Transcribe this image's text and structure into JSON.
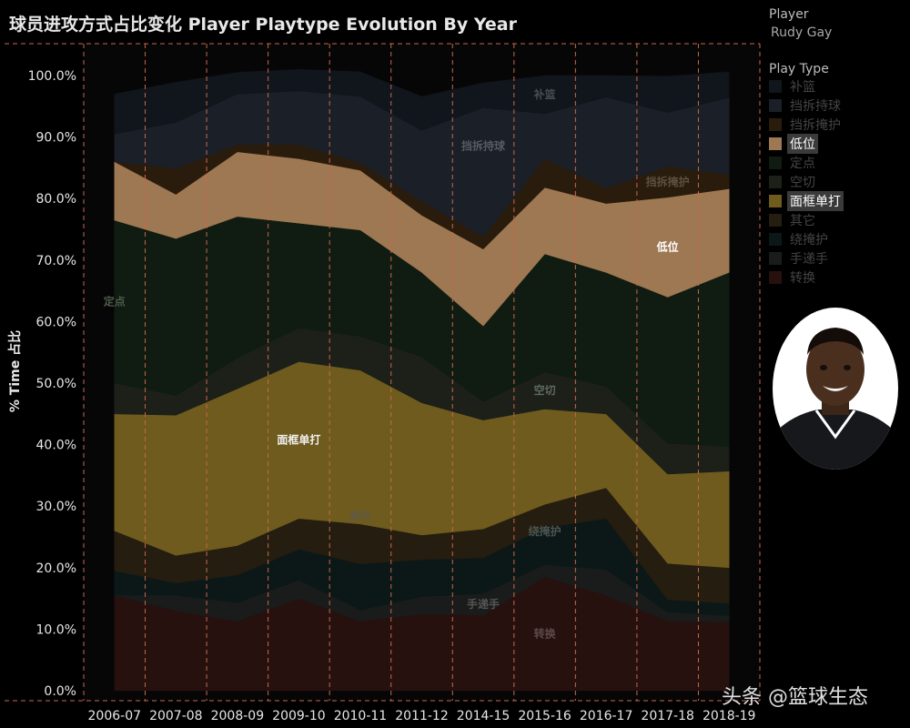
{
  "header": {
    "title": "球员进攻方式占比变化 Player Playtype Evolution By Year"
  },
  "panel": {
    "player_heading": "Player",
    "player_name": "Rudy Gay",
    "legend_heading": "Play Type",
    "legend": [
      {
        "label": "补篮",
        "state": "dim"
      },
      {
        "label": "挡拆持球",
        "state": "dim"
      },
      {
        "label": "挡拆掩护",
        "state": "dim"
      },
      {
        "label": "低位",
        "state": "active"
      },
      {
        "label": "定点",
        "state": "dim"
      },
      {
        "label": "空切",
        "state": "dim"
      },
      {
        "label": "面框单打",
        "state": "active"
      },
      {
        "label": "其它",
        "state": "dim"
      },
      {
        "label": "绕掩护",
        "state": "dim"
      },
      {
        "label": "手递手",
        "state": "dim"
      },
      {
        "label": "转换",
        "state": "dim"
      }
    ]
  },
  "watermark": "头条 @篮球生态",
  "chart_data": {
    "type": "area",
    "stacked": true,
    "ylabel": "% Time 占比",
    "xlabel": "",
    "y_unit": "%",
    "ylim": [
      0,
      100
    ],
    "y_ticks": [
      "0.0%",
      "10.0%",
      "20.0%",
      "30.0%",
      "40.0%",
      "50.0%",
      "60.0%",
      "70.0%",
      "80.0%",
      "90.0%",
      "100.0%"
    ],
    "grid": "vertical dashed per season",
    "categories": [
      "2006-07",
      "2007-08",
      "2008-09",
      "2009-10",
      "2010-11",
      "2011-12",
      "2014-15",
      "2015-16",
      "2016-17",
      "2017-18",
      "2018-19"
    ],
    "series": [
      {
        "name": "转换",
        "color": "#26110f",
        "label_color": "#5a4a48",
        "label_index": 7,
        "label_offset": 0.5,
        "values": [
          15.5,
          13.0,
          11.3,
          15.0,
          11.3,
          12.5,
          12.3,
          18.5,
          15.5,
          11.3,
          11.2
        ]
      },
      {
        "name": "手递手",
        "color": "#1a1c1b",
        "label_color": "#555555",
        "label_index": 6,
        "label_offset": 0.5,
        "values": [
          0,
          2.5,
          3.0,
          3.0,
          1.8,
          2.8,
          3.5,
          2.0,
          4.2,
          1.5,
          1.0
        ]
      },
      {
        "name": "绕掩护",
        "color": "#0c1818",
        "label_color": "#4b5550",
        "label_index": 7,
        "label_offset": 0.9,
        "values": [
          4.0,
          2.0,
          4.5,
          5.0,
          7.5,
          6.0,
          5.8,
          6.0,
          8.3,
          2.0,
          2.0
        ]
      },
      {
        "name": "其它",
        "color": "#241d10",
        "label_color": "#5d5a4a",
        "label_index": 4,
        "label_offset": 1.2,
        "values": [
          6.5,
          4.5,
          4.8,
          5.0,
          6.5,
          4.0,
          4.7,
          3.8,
          5.0,
          5.9,
          5.8
        ]
      },
      {
        "name": "面框单打",
        "color": "#6e5b1d",
        "label_color": "#f0f0f0",
        "label_index": 3,
        "label_offset": 0.5,
        "values": [
          19.0,
          22.8,
          25.5,
          25.5,
          25.0,
          21.5,
          17.7,
          15.5,
          12.0,
          14.5,
          15.7
        ]
      },
      {
        "name": "空切",
        "color": "#1c2019",
        "label_color": "#5f6a60",
        "label_index": 7,
        "label_offset": 0.5,
        "values": [
          5.0,
          3.2,
          5.0,
          5.5,
          5.5,
          7.5,
          3.0,
          6.0,
          4.5,
          5.0,
          4.0
        ]
      },
      {
        "name": "定点",
        "color": "#101c11",
        "label_color": "#4d5a49",
        "label_index": 0,
        "label_offset": 0.5,
        "values": [
          26.5,
          25.5,
          23.0,
          17.0,
          17.3,
          13.7,
          12.3,
          19.2,
          18.5,
          23.8,
          28.3
        ]
      },
      {
        "name": "低位",
        "color": "#9e7852",
        "label_color": "#ffffff",
        "label_index": 9,
        "label_offset": 0.5,
        "values": [
          9.5,
          7.2,
          10.5,
          10.5,
          9.7,
          9.3,
          12.5,
          10.8,
          11.2,
          16.2,
          13.6
        ]
      },
      {
        "name": "挡拆掩护",
        "color": "#2a1c0d",
        "label_color": "#5d5040",
        "label_index": 9,
        "label_offset": 0.5,
        "values": [
          0,
          4.2,
          1.2,
          2.3,
          1.2,
          2.3,
          2.0,
          4.7,
          2.5,
          5.0,
          2.3
        ]
      },
      {
        "name": "挡拆持球",
        "color": "#1b1f27",
        "label_color": "#565a62",
        "label_index": 6,
        "label_offset": 0.7,
        "values": [
          4.5,
          7.5,
          8.2,
          8.7,
          10.8,
          11.5,
          21.0,
          7.3,
          14.8,
          8.8,
          12.5
        ]
      },
      {
        "name": "补篮",
        "color": "#11151c",
        "label_color": "#474b52",
        "label_index": 7,
        "label_offset": 0.5,
        "values": [
          6.5,
          6.5,
          3.5,
          3.5,
          4.0,
          5.5,
          4.0,
          6.2,
          3.5,
          5.9,
          4.2
        ]
      }
    ]
  }
}
